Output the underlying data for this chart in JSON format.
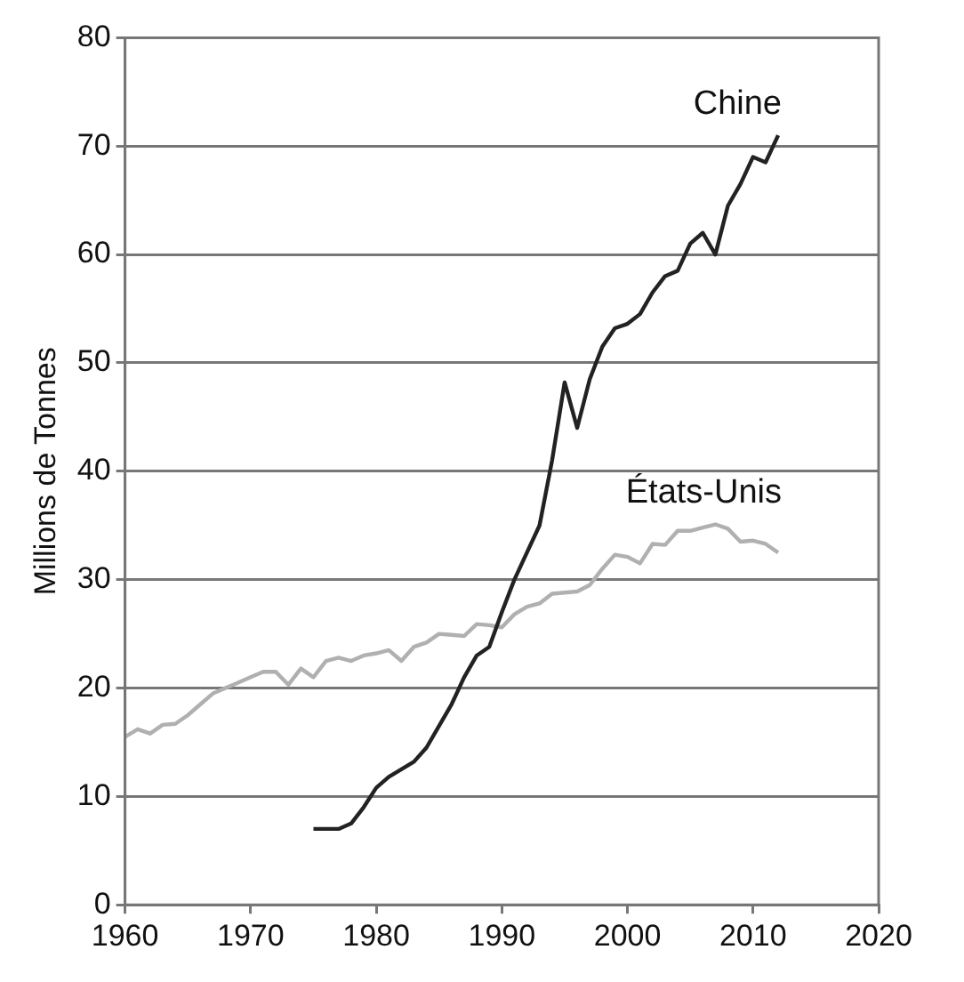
{
  "chart_data": {
    "type": "line",
    "ylabel": "Millions de Tonnes",
    "xlim": [
      1960,
      2020
    ],
    "xticks": [
      1960,
      1970,
      1980,
      1990,
      2000,
      2010,
      2020
    ],
    "ylim": [
      0,
      80
    ],
    "yticks": [
      0,
      10,
      20,
      30,
      40,
      50,
      60,
      70,
      80
    ],
    "grid": "y",
    "legend": false,
    "marker": "none",
    "line_style": "solid",
    "series": [
      {
        "name": "Chine",
        "color": "#222222",
        "x": [
          1975,
          1976,
          1977,
          1978,
          1979,
          1980,
          1981,
          1982,
          1983,
          1984,
          1985,
          1986,
          1987,
          1988,
          1989,
          1990,
          1991,
          1992,
          1993,
          1994,
          1995,
          1996,
          1997,
          1998,
          1999,
          2000,
          2001,
          2002,
          2003,
          2004,
          2005,
          2006,
          2007,
          2008,
          2009,
          2010,
          2011,
          2012
        ],
        "values": [
          7,
          7,
          7,
          7.5,
          9,
          10.8,
          11.8,
          12.5,
          13.2,
          14.5,
          16.5,
          18.5,
          21,
          23,
          23.8,
          27,
          30,
          32.5,
          35,
          41,
          48.2,
          44,
          48.5,
          51.5,
          53.2,
          53.6,
          54.5,
          56.5,
          58,
          58.5,
          61,
          62,
          60,
          64.5,
          66.5,
          69,
          68.5,
          71
        ]
      },
      {
        "name": "États-Unis",
        "color": "#b0b0b0",
        "x": [
          1960,
          1961,
          1962,
          1963,
          1964,
          1965,
          1966,
          1967,
          1968,
          1969,
          1970,
          1971,
          1972,
          1973,
          1974,
          1975,
          1976,
          1977,
          1978,
          1979,
          1980,
          1981,
          1982,
          1983,
          1984,
          1985,
          1986,
          1987,
          1988,
          1989,
          1990,
          1991,
          1992,
          1993,
          1994,
          1995,
          1996,
          1997,
          1998,
          1999,
          2000,
          2001,
          2002,
          2003,
          2004,
          2005,
          2006,
          2007,
          2008,
          2009,
          2010,
          2011,
          2012
        ],
        "values": [
          15.5,
          16.2,
          15.8,
          16.6,
          16.7,
          17.5,
          18.5,
          19.5,
          20,
          20.5,
          21,
          21.5,
          21.5,
          20.3,
          21.8,
          21,
          22.5,
          22.8,
          22.5,
          23,
          23.2,
          23.5,
          22.5,
          23.8,
          24.2,
          25,
          24.9,
          24.8,
          25.9,
          25.8,
          25.6,
          26.8,
          27.5,
          27.8,
          28.7,
          28.8,
          28.9,
          29.5,
          31,
          32.3,
          32.1,
          31.5,
          33.3,
          33.2,
          34.5,
          34.5,
          34.8,
          35.1,
          34.7,
          33.5,
          33.6,
          33.3,
          32.5
        ]
      }
    ]
  }
}
